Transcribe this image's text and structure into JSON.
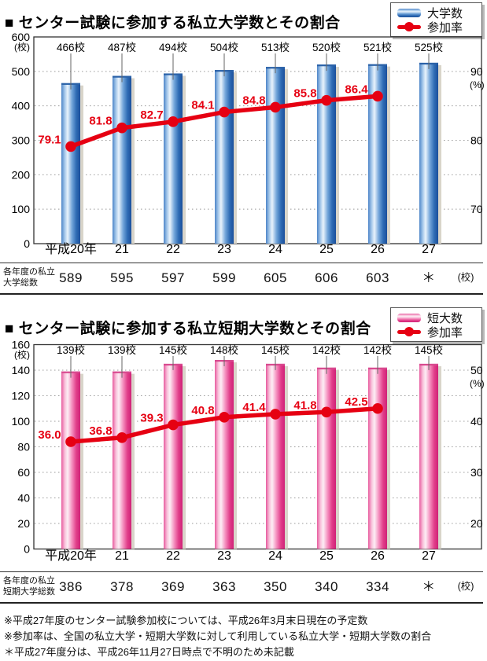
{
  "notes": [
    "※平成27年度のセンター試験参加校については、平成26年3月末日現在の予定数",
    "※参加率は、全国の私立大学・短期大学数に対して利用している私立大学・短期大学数の割合",
    "＊平成27年度分は、平成26年11月27日時点で不明のため未記載"
  ],
  "colors": {
    "line_red": "#e60012",
    "grid": "#999999",
    "axis": "#333333",
    "bar_shadow": "#d9d5ca",
    "blue_gradient": [
      "#4d85c8",
      "#a6c8ea",
      "#e9f3fc",
      "#74a6da",
      "#2f6cb5",
      "#1b4f9b"
    ],
    "blue_cap": "#2b62a8",
    "pink_gradient": [
      "#e75a9e",
      "#f8c0da",
      "#fdeef5",
      "#f590bf",
      "#e13e8a",
      "#d02277"
    ],
    "pink_cap": "#d84a8f"
  },
  "chart_data": [
    {
      "type": "bar",
      "title": "■ センター試験に参加する私立大学数とその割合",
      "legend": [
        {
          "label": "大学数",
          "marker": "bar",
          "color": "blue"
        },
        {
          "label": "参加率",
          "marker": "line",
          "color": "#e60012"
        }
      ],
      "categories": [
        "平成20年",
        "21",
        "22",
        "23",
        "24",
        "25",
        "26",
        "27"
      ],
      "bars": {
        "name": "大学数",
        "values": [
          466,
          487,
          494,
          504,
          513,
          520,
          521,
          525
        ],
        "labels": [
          "466校",
          "487校",
          "494校",
          "504校",
          "513校",
          "520校",
          "521校",
          "525校"
        ],
        "palette": "blue"
      },
      "line": {
        "name": "参加率",
        "values": [
          79.1,
          81.8,
          82.7,
          84.1,
          84.8,
          85.8,
          86.4,
          null
        ],
        "labels": [
          "79.1",
          "81.8",
          "82.7",
          "84.1",
          "84.8",
          "85.8",
          "86.4"
        ]
      },
      "left_axis": {
        "unit": "(校)",
        "min": 0,
        "max": 600,
        "tick_step": 100,
        "tick_labels": [
          "600",
          "500",
          "400",
          "300",
          "200",
          "100",
          "0"
        ]
      },
      "right_axis": {
        "unit": "(%)",
        "ticks": [
          90,
          80,
          70
        ],
        "value_at_left_zero": 65,
        "value_at_left_max": 95
      },
      "grid": "dotted horizontal every 100 (=5%)",
      "legend_position": "top-right",
      "table": {
        "label_line1": "各年度の私立",
        "label_line2": "大学総数",
        "values": [
          "589",
          "595",
          "597",
          "599",
          "605",
          "606",
          "603",
          "＊"
        ],
        "unit": "(校)"
      }
    },
    {
      "type": "bar",
      "title": "■ センター試験に参加する私立短期大学数とその割合",
      "legend": [
        {
          "label": "短大数",
          "marker": "bar",
          "color": "pink"
        },
        {
          "label": "参加率",
          "marker": "line",
          "color": "#e60012"
        }
      ],
      "categories": [
        "平成20年",
        "21",
        "22",
        "23",
        "24",
        "25",
        "26",
        "27"
      ],
      "bars": {
        "name": "短大数",
        "values": [
          139,
          139,
          145,
          148,
          145,
          142,
          142,
          145
        ],
        "labels": [
          "139校",
          "139校",
          "145校",
          "148校",
          "145校",
          "142校",
          "142校",
          "145校"
        ],
        "palette": "pink"
      },
      "line": {
        "name": "参加率",
        "values": [
          36.0,
          36.8,
          39.3,
          40.8,
          41.4,
          41.8,
          42.5,
          null
        ],
        "labels": [
          "36.0",
          "36.8",
          "39.3",
          "40.8",
          "41.4",
          "41.8",
          "42.5"
        ]
      },
      "left_axis": {
        "unit": "(校)",
        "min": 0,
        "max": 160,
        "tick_step": 20,
        "tick_labels": [
          "160",
          "140",
          "120",
          "100",
          "80",
          "60",
          "40",
          "20",
          "0"
        ]
      },
      "right_axis": {
        "unit": "(%)",
        "ticks": [
          50,
          40,
          30,
          20
        ],
        "value_at_left_zero": 15,
        "value_at_left_max": 55
      },
      "grid": "dotted horizontal every 20 (=5%)",
      "legend_position": "top-right",
      "table": {
        "label_line1": "各年度の私立",
        "label_line2": "短期大学総数",
        "values": [
          "386",
          "378",
          "369",
          "363",
          "350",
          "340",
          "334",
          "＊"
        ],
        "unit": "(校)"
      }
    }
  ]
}
